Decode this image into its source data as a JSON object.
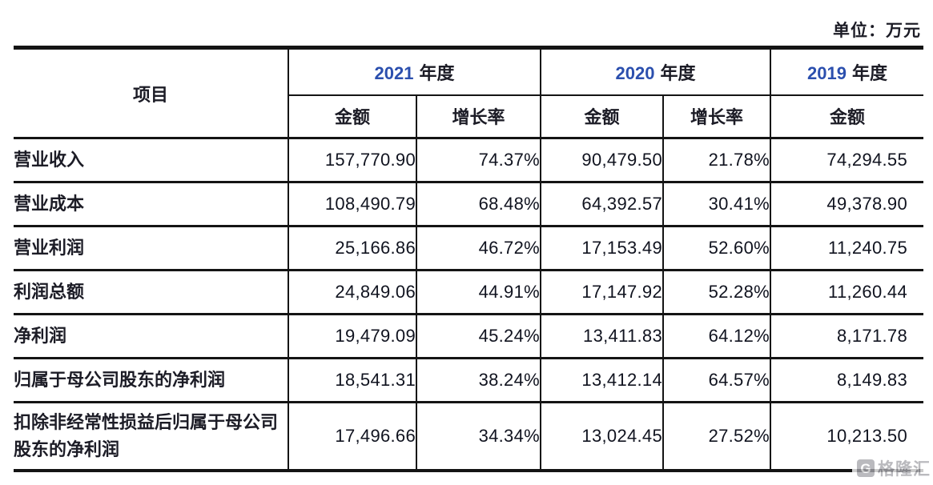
{
  "unit_label": "单位：万元",
  "colors": {
    "ink": "#141414",
    "number_text": "#10131f",
    "year_digits": "#2b4fae",
    "watermark_gray": "#a7a7ad"
  },
  "table": {
    "item_header": "项目",
    "year_groups": [
      {
        "year": "2021",
        "era": "年度"
      },
      {
        "year": "2020",
        "era": "年度"
      },
      {
        "year": "2019",
        "era": "年度"
      }
    ],
    "sub_headers": [
      "金额",
      "增长率",
      "金额",
      "增长率",
      "金额"
    ],
    "rows": [
      {
        "label": "营业收入",
        "cells": [
          "157,770.90",
          "74.37%",
          "90,479.50",
          "21.78%",
          "74,294.55"
        ]
      },
      {
        "label": "营业成本",
        "cells": [
          "108,490.79",
          "68.48%",
          "64,392.57",
          "30.41%",
          "49,378.90"
        ]
      },
      {
        "label": "营业利润",
        "cells": [
          "25,166.86",
          "46.72%",
          "17,153.49",
          "52.60%",
          "11,240.75"
        ]
      },
      {
        "label": "利润总额",
        "cells": [
          "24,849.06",
          "44.91%",
          "17,147.92",
          "52.28%",
          "11,260.44"
        ]
      },
      {
        "label": "净利润",
        "cells": [
          "19,479.09",
          "45.24%",
          "13,411.83",
          "64.12%",
          "8,171.78"
        ]
      },
      {
        "label": "归属于母公司股东的净利润",
        "cells": [
          "18,541.31",
          "38.24%",
          "13,412.14",
          "64.57%",
          "8,149.83"
        ]
      },
      {
        "label": "扣除非经常性损益后归属于母公司股东的净利润",
        "cells": [
          "17,496.66",
          "34.34%",
          "13,024.45",
          "27.52%",
          "10,213.50"
        ]
      }
    ]
  },
  "watermark": {
    "icon": "G",
    "text": "格隆汇"
  }
}
